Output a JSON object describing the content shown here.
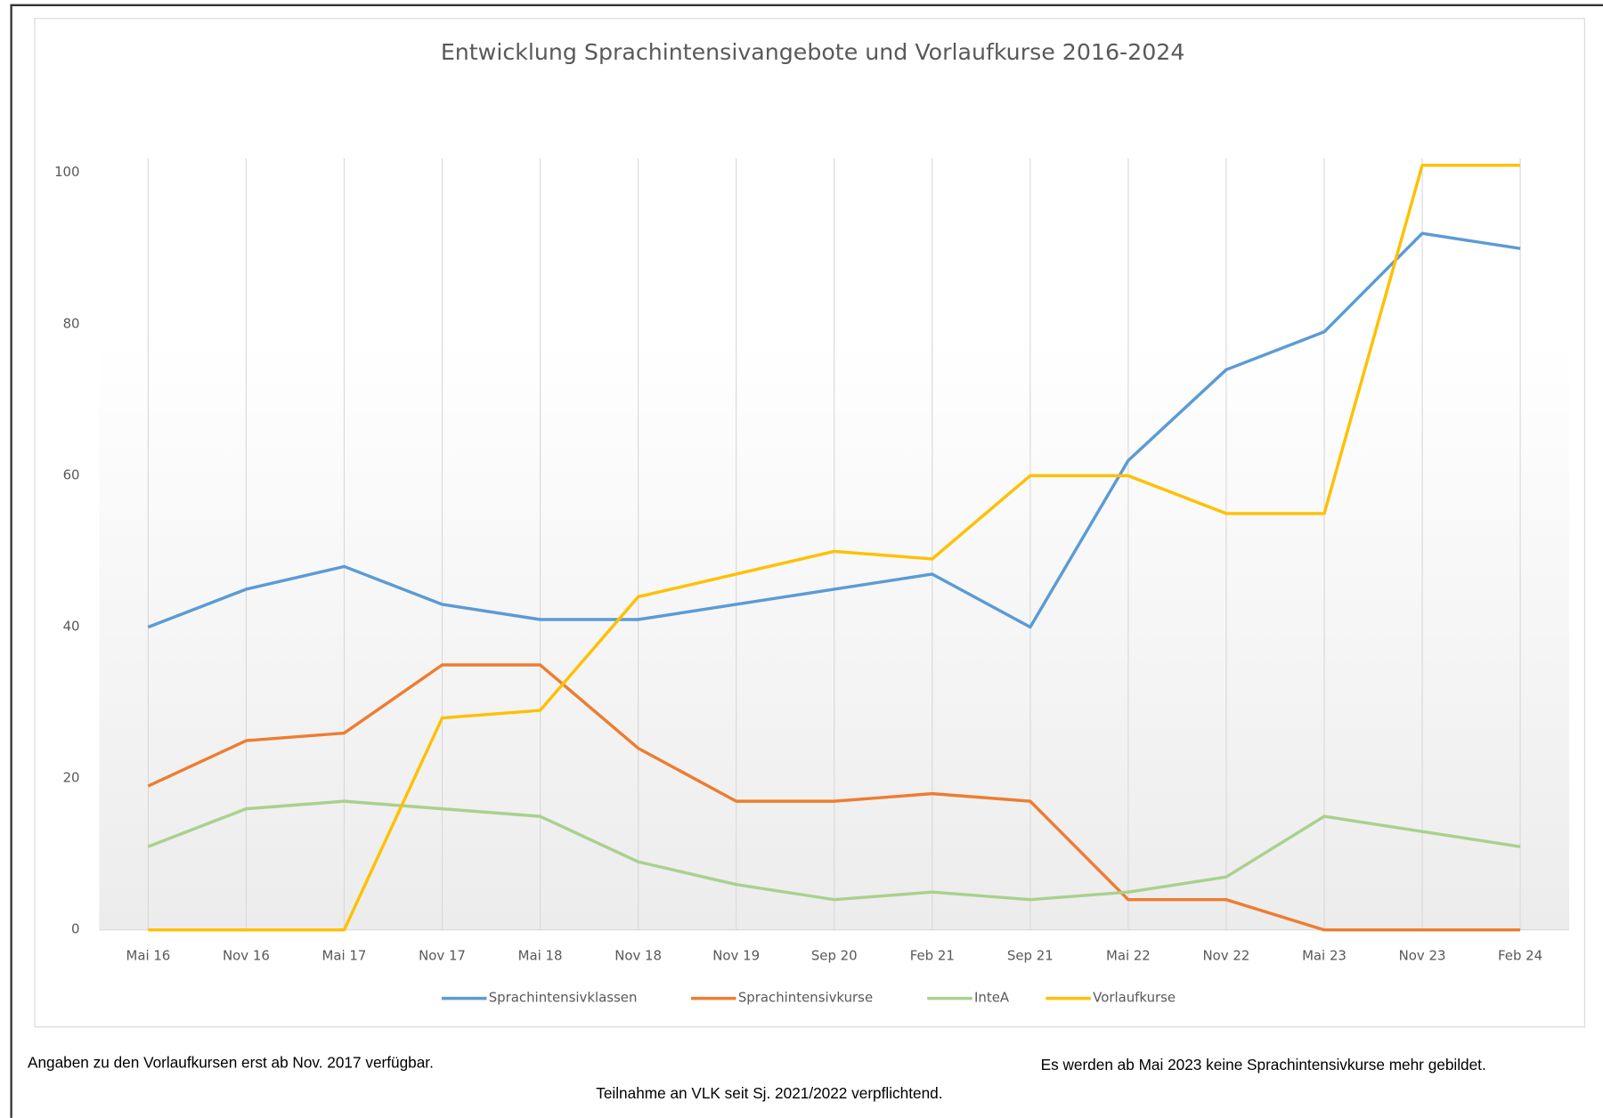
{
  "chart_data": {
    "type": "line",
    "title": "Entwicklung Sprachintensivangebote und Vorlaufkurse 2016-2024",
    "categories": [
      "Mai 16",
      "Nov 16",
      "Mai 17",
      "Nov 17",
      "Mai 18",
      "Nov 18",
      "Nov 19",
      "Sep 20",
      "Feb 21",
      "Sep 21",
      "Mai 22",
      "Nov 22",
      "Mai 23",
      "Nov 23",
      "Feb 24"
    ],
    "series": [
      {
        "name": "Sprachintensivklassen",
        "color": "#5b9bd5",
        "values": [
          40,
          45,
          48,
          43,
          41,
          41,
          43,
          45,
          47,
          40,
          62,
          74,
          79,
          92,
          90
        ]
      },
      {
        "name": "Sprachintensivkurse",
        "color": "#ed7d31",
        "values": [
          19,
          25,
          26,
          35,
          35,
          24,
          17,
          17,
          18,
          17,
          4,
          4,
          0,
          0,
          0
        ]
      },
      {
        "name": "InteA",
        "color": "#a9d18e",
        "values": [
          11,
          16,
          17,
          16,
          15,
          9,
          6,
          4,
          5,
          4,
          5,
          7,
          15,
          13,
          11
        ]
      },
      {
        "name": "Vorlaufkurse",
        "color": "#ffc000",
        "values": [
          0,
          0,
          0,
          28,
          29,
          44,
          47,
          50,
          49,
          60,
          60,
          55,
          55,
          101,
          101
        ]
      }
    ],
    "ylim": [
      0,
      110
    ],
    "yticks": [
      0,
      20,
      40,
      60,
      80,
      100
    ],
    "legend": "bottom",
    "annotations": [
      "Angaben zu den Vorlaufkursen erst ab Nov. 2017 verfügbar.",
      "Teilnahme an VLK seit Sj. 2021/2022 verpflichtend.",
      "Es werden ab Mai 2023 keine Sprachintensivkurse mehr gebildet."
    ]
  }
}
